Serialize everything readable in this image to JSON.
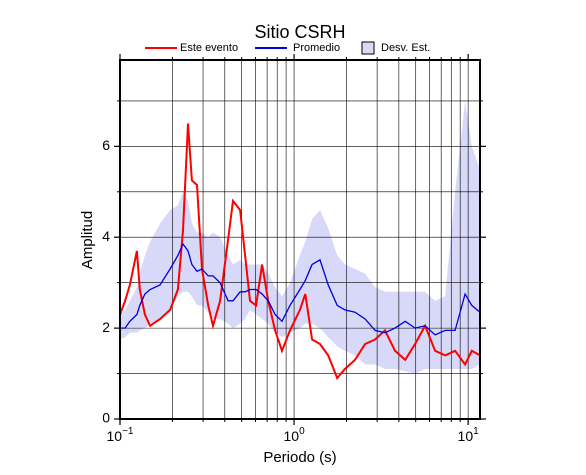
{
  "chart_data": {
    "type": "line",
    "title": "Sitio CSRH",
    "xlabel": "Periodo (s)",
    "ylabel": "Amplitud",
    "log_x": true,
    "grid": true,
    "xlim": [
      0.1,
      11.7
    ],
    "ylim": [
      0,
      7.9
    ],
    "xticks": [
      {
        "value": 0.1,
        "label": "10",
        "exponent": "−1"
      },
      {
        "value": 1,
        "label": "10",
        "exponent": "0"
      },
      {
        "value": 10,
        "label": "10",
        "exponent": "1"
      }
    ],
    "xminor": [
      0.2,
      0.3,
      0.4,
      0.5,
      0.6,
      0.7,
      0.8,
      0.9,
      2,
      3,
      4,
      5,
      6,
      7,
      8,
      9
    ],
    "yticks": [
      0,
      2,
      4,
      6
    ],
    "yminor": [
      1,
      3,
      5,
      7
    ],
    "x": [
      0.1,
      0.107,
      0.114,
      0.125,
      0.13,
      0.139,
      0.149,
      0.17,
      0.194,
      0.215,
      0.23,
      0.246,
      0.259,
      0.277,
      0.296,
      0.321,
      0.342,
      0.376,
      0.418,
      0.446,
      0.49,
      0.523,
      0.558,
      0.605,
      0.655,
      0.71,
      0.778,
      0.853,
      0.948,
      1.08,
      1.16,
      1.27,
      1.41,
      1.57,
      1.77,
      1.96,
      2.24,
      2.56,
      2.92,
      3.33,
      3.8,
      4.35,
      4.96,
      5.66,
      6.46,
      7.38,
      8.42,
      9.61,
      10.5,
      11.7
    ],
    "band": {
      "name": "Desv. Est.",
      "color": "#d8d8f8",
      "lower": [
        1.75,
        1.8,
        1.9,
        1.9,
        1.95,
        2.0,
        2.1,
        2.15,
        2.4,
        2.7,
        2.8,
        2.8,
        2.7,
        2.5,
        2.5,
        2.35,
        2.2,
        2.2,
        2.1,
        2.0,
        2.1,
        2.2,
        2.4,
        2.3,
        2.2,
        2.1,
        1.9,
        1.8,
        1.9,
        2.0,
        2.1,
        2.1,
        2.0,
        1.8,
        1.6,
        1.5,
        1.4,
        1.2,
        1.2,
        1.1,
        1.1,
        1.05,
        1.0,
        1.1,
        1.1,
        1.1,
        1.1,
        1.1,
        1.1,
        1.2
      ],
      "upper": [
        2.3,
        2.4,
        2.6,
        2.9,
        3.2,
        3.6,
        3.9,
        4.3,
        4.6,
        4.7,
        5.0,
        4.8,
        4.3,
        4.1,
        4.1,
        4.0,
        4.1,
        4.0,
        3.6,
        3.4,
        3.5,
        3.4,
        3.4,
        3.4,
        3.4,
        3.2,
        2.9,
        2.7,
        3.0,
        3.6,
        3.9,
        4.4,
        4.6,
        4.2,
        3.6,
        3.4,
        3.3,
        3.2,
        2.9,
        2.8,
        2.8,
        2.8,
        2.8,
        2.8,
        2.6,
        2.7,
        5.0,
        7.0,
        6.0,
        5.5
      ]
    },
    "series": [
      {
        "name": "Este evento",
        "color": "#ff0000",
        "values": [
          2.3,
          2.6,
          2.95,
          3.7,
          2.85,
          2.3,
          2.05,
          2.2,
          2.4,
          2.85,
          4.15,
          6.5,
          5.25,
          5.15,
          3.3,
          2.5,
          2.05,
          2.6,
          3.95,
          4.8,
          4.6,
          3.6,
          2.6,
          2.5,
          3.4,
          2.6,
          1.95,
          1.5,
          1.95,
          2.4,
          2.75,
          1.75,
          1.65,
          1.4,
          0.9,
          1.1,
          1.3,
          1.65,
          1.75,
          1.95,
          1.5,
          1.3,
          1.65,
          2.05,
          1.5,
          1.4,
          1.5,
          1.2,
          1.5,
          1.4
        ]
      },
      {
        "name": "Promedio",
        "color": "#0000dd",
        "values": [
          2.0,
          2.0,
          2.15,
          2.3,
          2.5,
          2.75,
          2.85,
          2.95,
          3.3,
          3.6,
          3.85,
          3.7,
          3.4,
          3.25,
          3.3,
          3.15,
          3.15,
          3.0,
          2.6,
          2.6,
          2.8,
          2.8,
          2.85,
          2.85,
          2.75,
          2.6,
          2.3,
          2.15,
          2.5,
          2.85,
          3.05,
          3.4,
          3.5,
          2.95,
          2.5,
          2.4,
          2.35,
          2.2,
          1.95,
          1.9,
          2.0,
          2.15,
          2.0,
          2.05,
          1.85,
          1.95,
          1.95,
          2.75,
          2.5,
          2.35
        ]
      }
    ]
  }
}
